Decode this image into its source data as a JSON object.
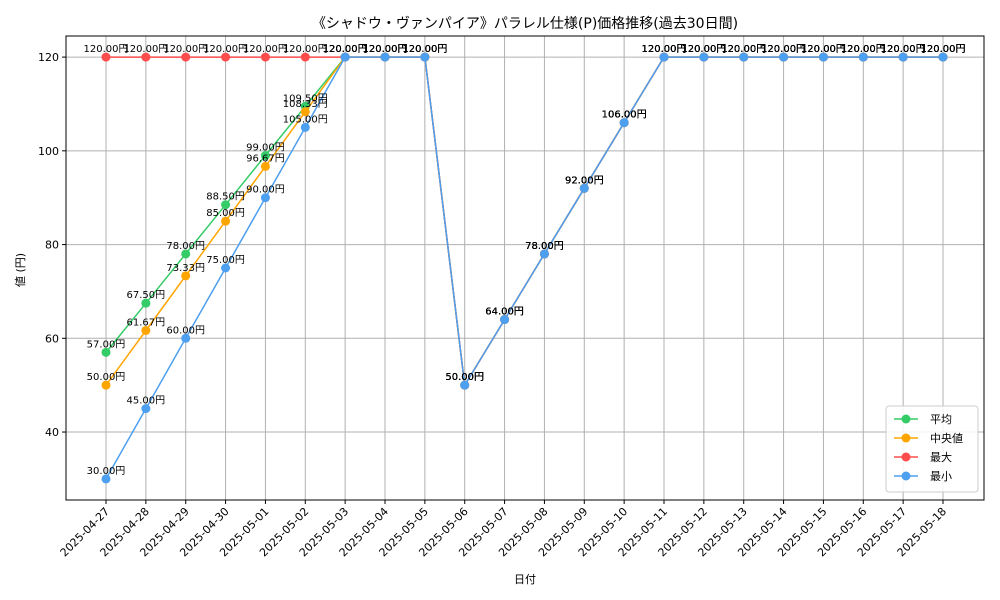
{
  "chart_data": {
    "type": "line",
    "title": "《シャドウ・ヴァンパイア》パラレル仕様(P)価格推移(過去30日間)",
    "xlabel": "日付",
    "ylabel": "値 (円)",
    "ylim": [
      25.5,
      124.5
    ],
    "yticks": [
      40,
      60,
      80,
      100,
      120
    ],
    "grid": true,
    "legend_position": "bottom-right",
    "label_suffix": "円",
    "categories": [
      "2025-04-27",
      "2025-04-28",
      "2025-04-29",
      "2025-04-30",
      "2025-05-01",
      "2025-05-02",
      "2025-05-03",
      "2025-05-04",
      "2025-05-05",
      "2025-05-06",
      "2025-05-07",
      "2025-05-08",
      "2025-05-09",
      "2025-05-10",
      "2025-05-11",
      "2025-05-12",
      "2025-05-13",
      "2025-05-14",
      "2025-05-15",
      "2025-05-16",
      "2025-05-17",
      "2025-05-18"
    ],
    "series": [
      {
        "name": "平均",
        "color": "#33cc66",
        "values": [
          57.0,
          67.5,
          78.0,
          88.5,
          99.0,
          109.5,
          120,
          120,
          120,
          50,
          64,
          78,
          92,
          106,
          120,
          120,
          120,
          120,
          120,
          120,
          120,
          120
        ]
      },
      {
        "name": "中央値",
        "color": "#ffa500",
        "values": [
          50.0,
          61.67,
          73.33,
          85.0,
          96.67,
          108.33,
          120,
          120,
          120,
          50,
          64,
          78,
          92,
          106,
          120,
          120,
          120,
          120,
          120,
          120,
          120,
          120
        ]
      },
      {
        "name": "最大",
        "color": "#ff4d4d",
        "values": [
          120,
          120,
          120,
          120,
          120,
          120,
          120,
          120,
          120,
          50,
          64,
          78,
          92,
          106,
          120,
          120,
          120,
          120,
          120,
          120,
          120,
          120
        ]
      },
      {
        "name": "最小",
        "color": "#4d9ff0",
        "values": [
          30.0,
          45.0,
          60.0,
          75.0,
          90.0,
          105.0,
          120,
          120,
          120,
          50,
          64,
          78,
          92,
          106,
          120,
          120,
          120,
          120,
          120,
          120,
          120,
          120
        ]
      }
    ]
  }
}
